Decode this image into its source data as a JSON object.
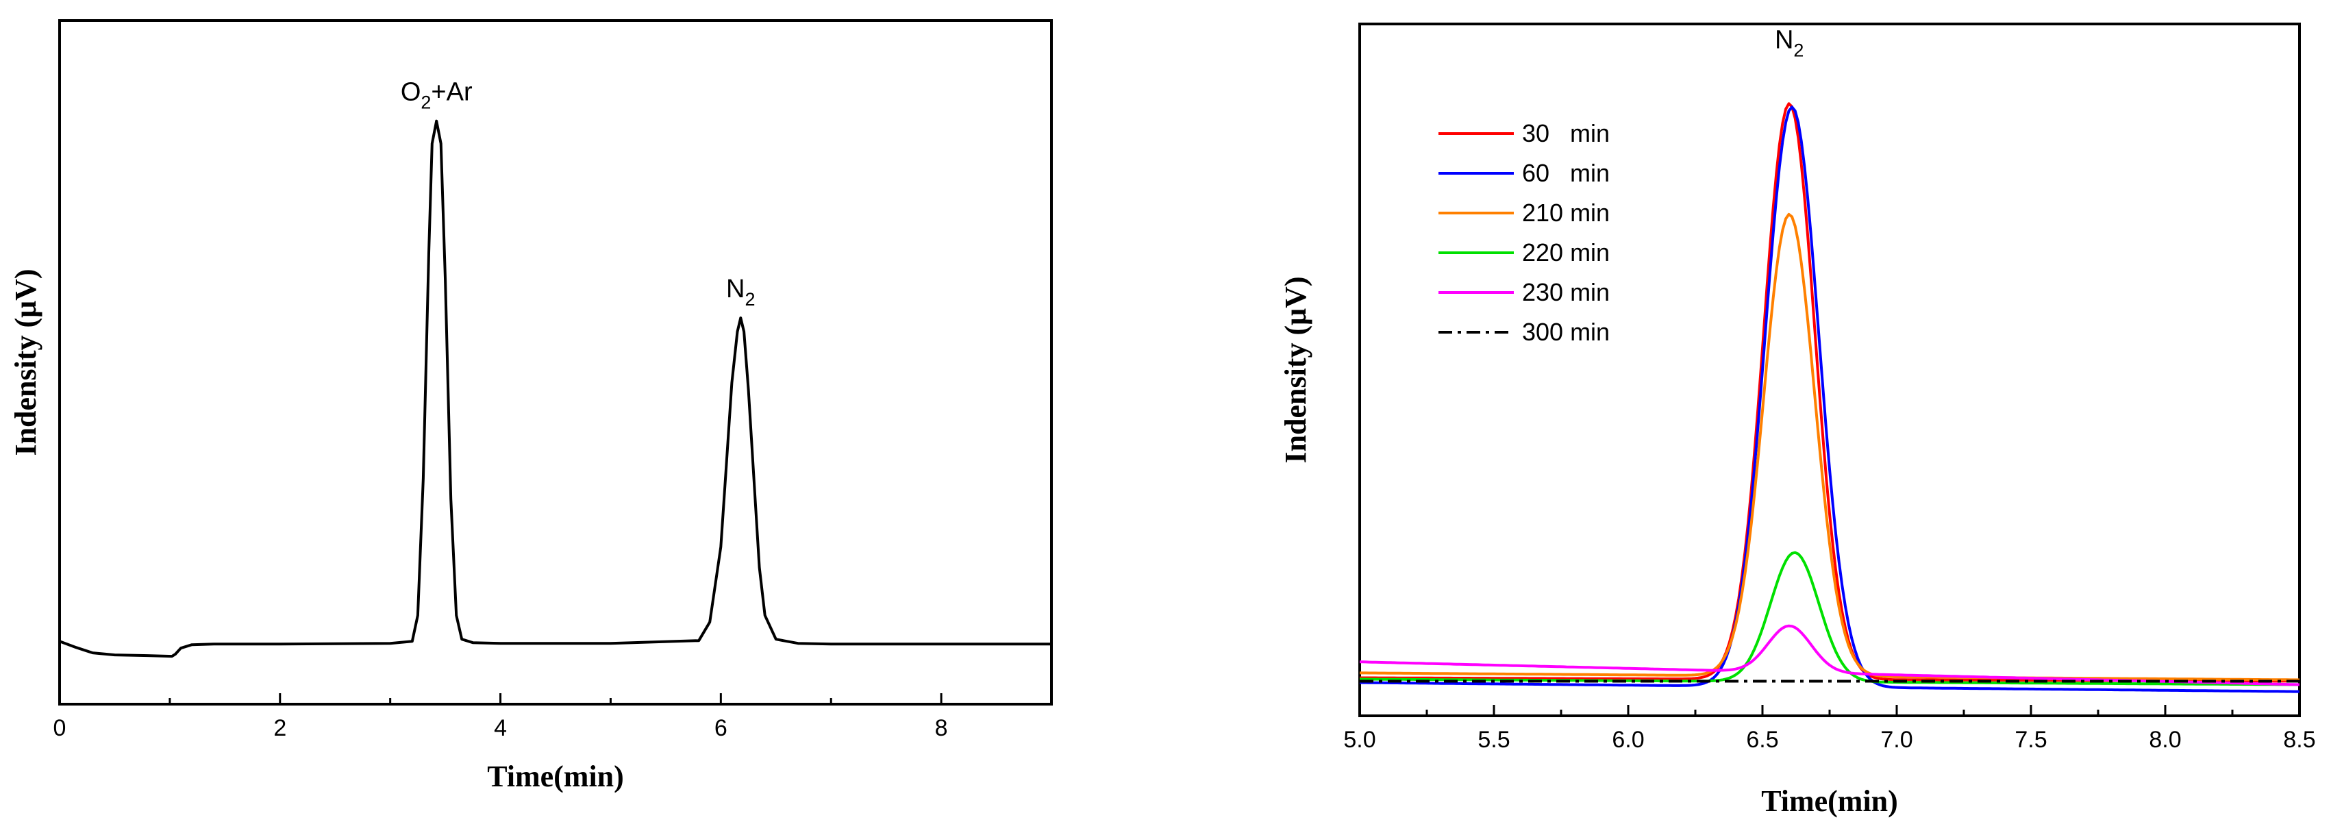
{
  "chart_data": [
    {
      "type": "line",
      "title": "",
      "xlabel": "Time(min)",
      "ylabel": "Indensity (μV)",
      "xlim": [
        0,
        9
      ],
      "ylim": [
        0,
        1
      ],
      "grid": false,
      "x_ticks": [
        "0",
        "2",
        "4",
        "6",
        "8"
      ],
      "annotations": [
        {
          "main": "O",
          "sub": "2",
          "tail": "+Ar",
          "x": 3.42,
          "y": 0.853
        },
        {
          "main": "N",
          "sub": "2",
          "tail": "",
          "x": 6.18,
          "y": 0.565
        }
      ],
      "series": [
        {
          "color": "#000000",
          "x": [
            0,
            0.15,
            0.3,
            0.5,
            0.8,
            1.02,
            1.05,
            1.1,
            1.2,
            1.4,
            2,
            3,
            3.2,
            3.25,
            3.3,
            3.35,
            3.38,
            3.42,
            3.46,
            3.5,
            3.55,
            3.6,
            3.65,
            3.75,
            4,
            5,
            5.8,
            5.9,
            6.0,
            6.05,
            6.1,
            6.15,
            6.18,
            6.21,
            6.25,
            6.3,
            6.35,
            6.4,
            6.5,
            6.7,
            7,
            8,
            9
          ],
          "y": [
            0.092,
            0.083,
            0.075,
            0.072,
            0.071,
            0.07,
            0.073,
            0.082,
            0.087,
            0.088,
            0.088,
            0.089,
            0.092,
            0.13,
            0.33,
            0.66,
            0.82,
            0.853,
            0.82,
            0.62,
            0.3,
            0.13,
            0.095,
            0.09,
            0.089,
            0.089,
            0.093,
            0.12,
            0.23,
            0.35,
            0.47,
            0.545,
            0.565,
            0.545,
            0.46,
            0.33,
            0.2,
            0.13,
            0.095,
            0.089,
            0.088,
            0.088,
            0.088
          ]
        }
      ]
    },
    {
      "type": "line",
      "title": "",
      "xlabel": "Time(min)",
      "ylabel": "Indensity (μV)",
      "xlim": [
        5.0,
        8.5
      ],
      "ylim": [
        0,
        1
      ],
      "grid": false,
      "x_ticks": [
        "5.0",
        "5.5",
        "6.0",
        "6.5",
        "7.0",
        "7.5",
        "8.0",
        "8.5"
      ],
      "legend_position": "top-left",
      "annotations": [
        {
          "main": "N",
          "sub": "2",
          "tail": "",
          "x": 6.6,
          "y": 0.935
        }
      ],
      "series": [
        {
          "name": "30   min",
          "color": "#ff0000",
          "dash": "",
          "baseline_start": 0.055,
          "baseline_end": 0.05,
          "peak_x": 6.6,
          "peak_y": 0.885,
          "sigma": 0.095
        },
        {
          "name": "60   min",
          "color": "#0000ff",
          "dash": "",
          "baseline_start": 0.048,
          "baseline_end": 0.035,
          "peak_x": 6.61,
          "peak_y": 0.88,
          "sigma": 0.1
        },
        {
          "name": "210 min",
          "color": "#ff8000",
          "dash": "",
          "baseline_start": 0.062,
          "baseline_end": 0.052,
          "peak_x": 6.6,
          "peak_y": 0.725,
          "sigma": 0.095
        },
        {
          "name": "220 min",
          "color": "#00e000",
          "dash": "",
          "baseline_start": 0.053,
          "baseline_end": 0.045,
          "peak_x": 6.62,
          "peak_y": 0.236,
          "sigma": 0.09
        },
        {
          "name": "230 min",
          "color": "#ff00ff",
          "dash": "",
          "baseline_start": 0.078,
          "baseline_end": 0.045,
          "peak_x": 6.6,
          "peak_y": 0.13,
          "sigma": 0.08
        },
        {
          "name": "300 min",
          "color": "#000000",
          "dash": "20,8,5,8",
          "baseline_start": 0.05,
          "baseline_end": 0.05,
          "peak_x": 6.6,
          "peak_y": 0.05,
          "sigma": 0.1
        }
      ]
    }
  ]
}
